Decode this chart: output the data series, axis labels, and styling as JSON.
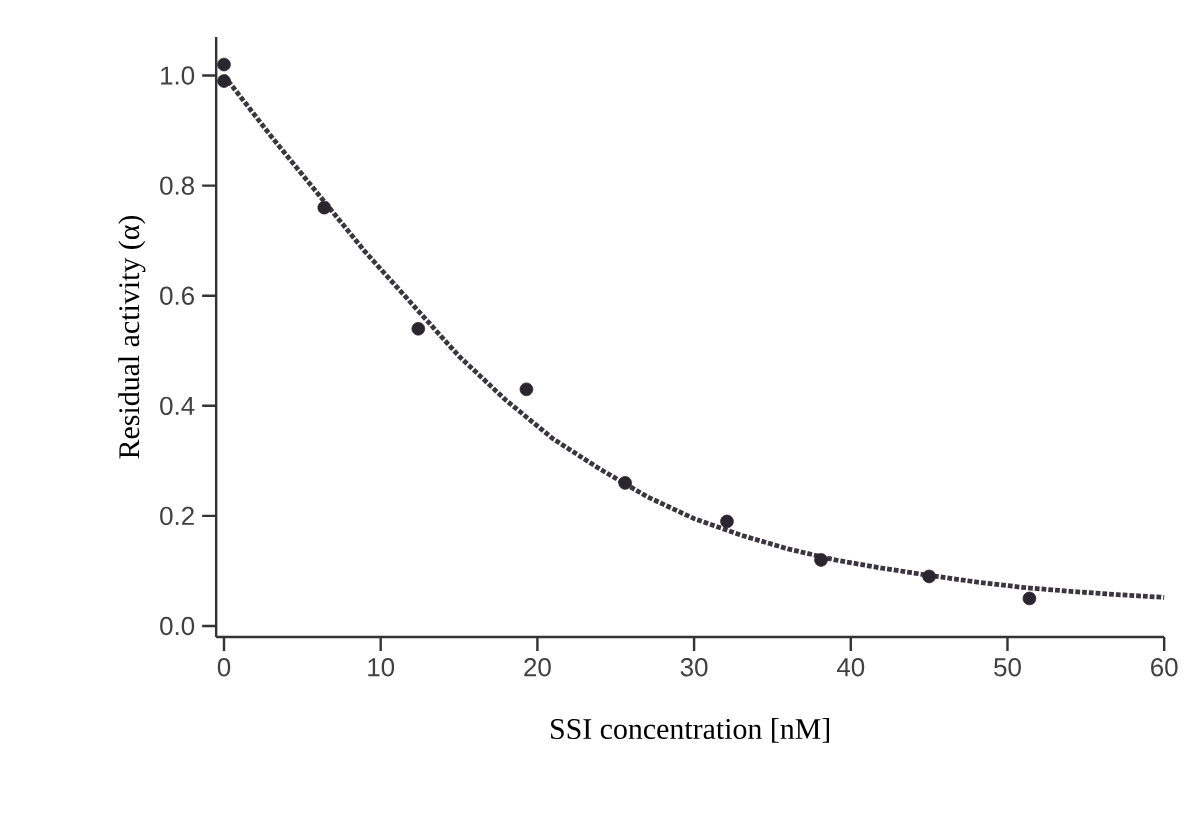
{
  "chart_data": {
    "type": "scatter",
    "xlabel": "SSI concentration [nM]",
    "ylabel": "Residual activity (α)",
    "xlim": [
      -0.5,
      60
    ],
    "ylim": [
      -0.02,
      1.07
    ],
    "xticks": [
      0,
      10,
      20,
      30,
      40,
      50,
      60
    ],
    "yticks": [
      {
        "value": 0,
        "label": "0.0"
      },
      {
        "value": 0.2,
        "label": "0.2"
      },
      {
        "value": 0.4,
        "label": "0.4"
      },
      {
        "value": 0.6,
        "label": "0.6"
      },
      {
        "value": 0.8,
        "label": "0.8"
      },
      {
        "value": 1,
        "label": "1.0"
      }
    ],
    "grid": false,
    "series": [
      {
        "marker": "circle",
        "color": "#2a2630",
        "x": [
          0,
          0,
          6.4,
          12.4,
          19.3,
          25.6,
          32.1,
          38.1,
          45.0,
          51.4
        ],
        "values": [
          1.02,
          0.99,
          0.76,
          0.54,
          0.43,
          0.26,
          0.19,
          0.12,
          0.09,
          0.05
        ]
      },
      {
        "type": "line",
        "marker": "none",
        "line_style": "dotted",
        "color": "#3a3640",
        "x": [
          0,
          3,
          6,
          9,
          12,
          15,
          18,
          21,
          24,
          27,
          30,
          33,
          36,
          39,
          42,
          45,
          48,
          51,
          54,
          57,
          60
        ],
        "values": [
          1.0,
          0.89,
          0.785,
          0.68,
          0.585,
          0.49,
          0.41,
          0.34,
          0.285,
          0.235,
          0.195,
          0.165,
          0.14,
          0.12,
          0.105,
          0.092,
          0.08,
          0.07,
          0.063,
          0.057,
          0.052
        ]
      }
    ]
  }
}
